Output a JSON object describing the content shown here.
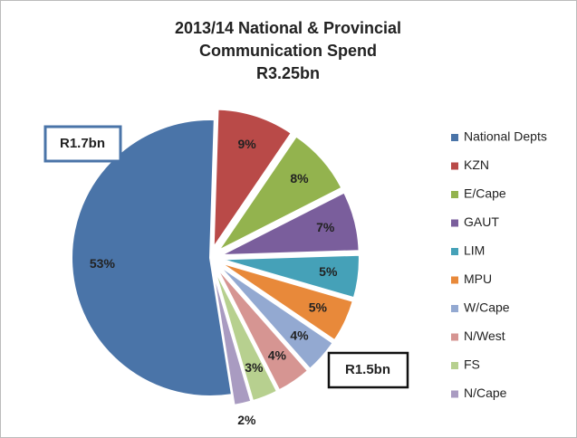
{
  "chart_data": {
    "type": "pie",
    "title": [
      "2013/14 National & Provincial",
      "Communication Spend",
      "R3.25bn"
    ],
    "categories": [
      "National Depts",
      "KZN",
      "E/Cape",
      "GAUT",
      "LIM",
      "MPU",
      "W/Cape",
      "N/West",
      "FS",
      "N/Cape"
    ],
    "values": [
      53,
      9,
      8,
      7,
      5,
      5,
      4,
      4,
      3,
      2
    ],
    "value_labels": [
      "53%",
      "9%",
      "8%",
      "7%",
      "5%",
      "5%",
      "4%",
      "4%",
      "3%",
      "2%"
    ],
    "colors": [
      "#4a74a8",
      "#b94a48",
      "#93b34e",
      "#7a5e9c",
      "#45a1b8",
      "#e8893a",
      "#93a9d1",
      "#d69592",
      "#b7d08f",
      "#a99bc1"
    ],
    "annotations": [
      "R1.7bn",
      "R1.5bn"
    ],
    "legend": "right"
  }
}
